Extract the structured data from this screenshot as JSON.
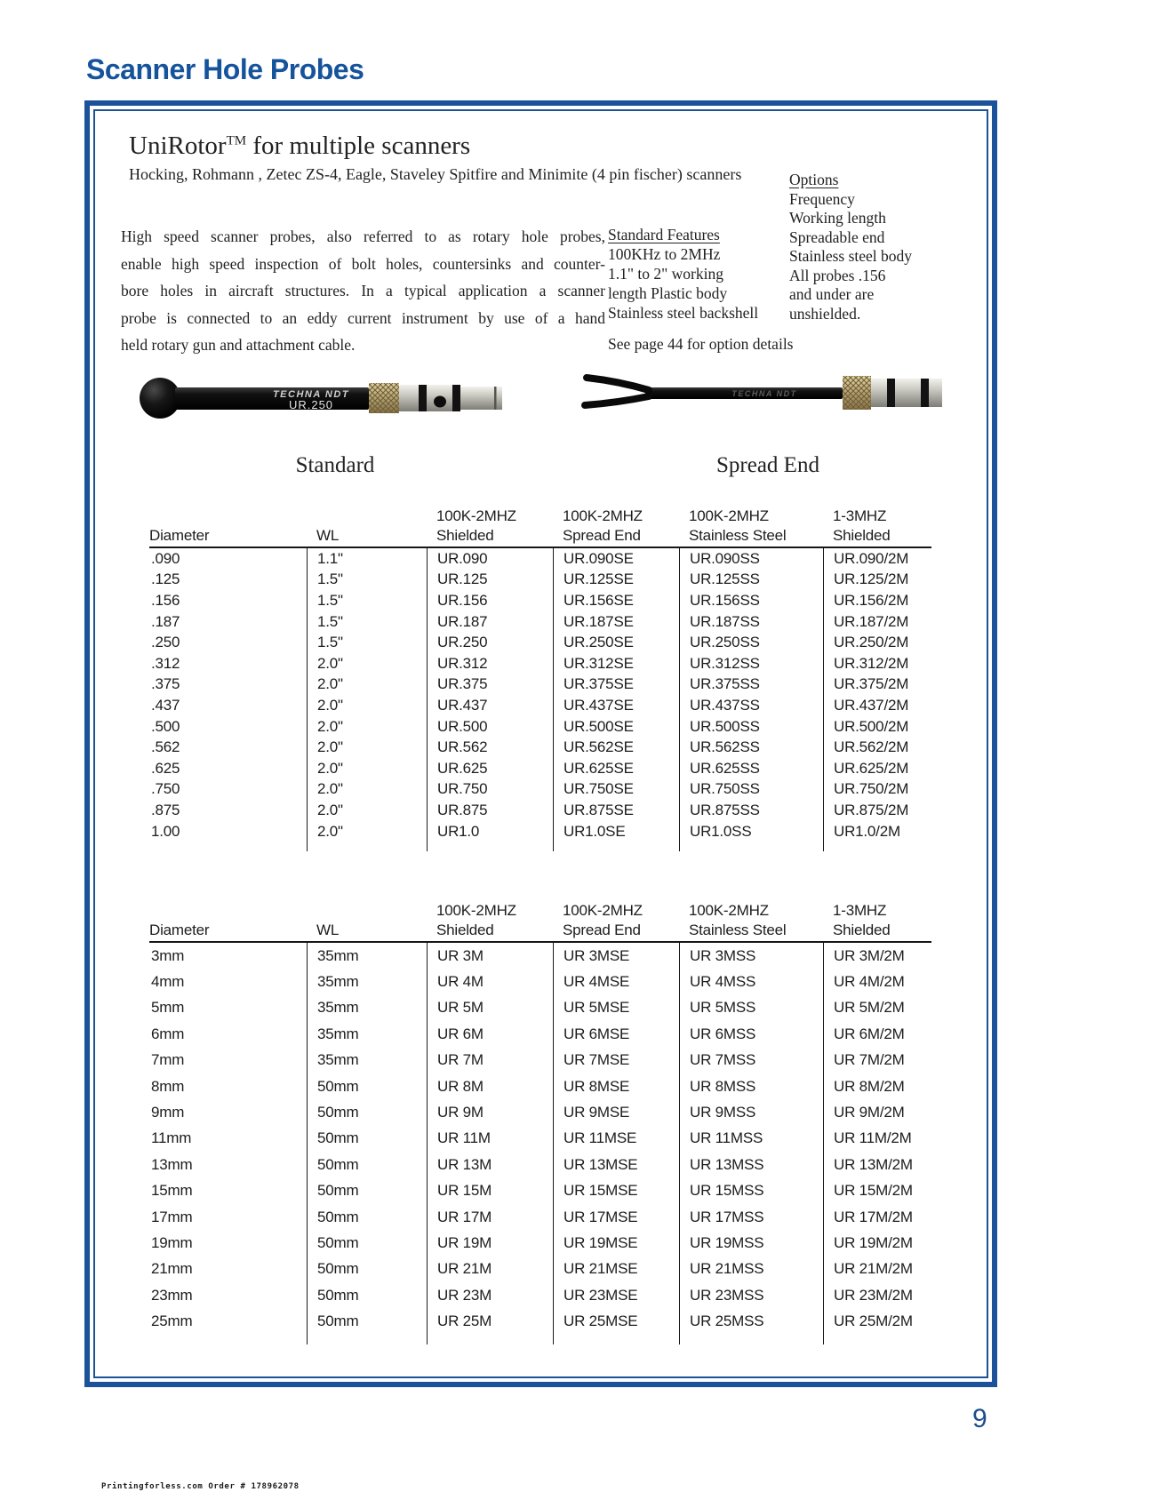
{
  "page": {
    "title": "Scanner Hole Probes",
    "page_number": "9",
    "print_footer": "Printingforless.com Order # 178962078"
  },
  "header": {
    "product_name": "UniRotor",
    "trademark": "TM",
    "product_tagline": " for multiple scanners",
    "compatibility": "Hocking, Rohmann , Zetec ZS-4, Eagle, Staveley Spitfire and Minimite (4 pin fischer) scanners"
  },
  "description": {
    "lines": [
      "High speed scanner probes, also referred to as rotary hole probes,",
      "enable high speed inspection of bolt holes, countersinks and counter-",
      "bore holes in aircraft structures. In a typical application a scanner",
      "probe is connected to an eddy current instrument by use of a hand",
      "held rotary gun and attachment cable."
    ]
  },
  "standard_features": {
    "heading": "Standard Features",
    "lines": [
      "100KHz to 2MHz",
      "1.1\" to 2\" working",
      "length Plastic body",
      "Stainless steel backshell"
    ]
  },
  "options": {
    "heading": "Options",
    "lines": [
      "Frequency",
      "Working length",
      "Spreadable end",
      "Stainless steel body",
      "All probes .156",
      "and under are",
      "unshielded."
    ]
  },
  "note": "See page 44 for option details",
  "probes": {
    "standard": {
      "label": "Standard",
      "brand": "TECHNA NDT",
      "model": "UR.250"
    },
    "spread_end": {
      "label": "Spread End",
      "brand": "TECHNA NDT"
    }
  },
  "colors": {
    "accent_blue": "#1b5299",
    "table_line": "#1a1a1a"
  },
  "tables": [
    {
      "headers_top": [
        "",
        "",
        "100K-2MHZ",
        "100K-2MHZ",
        "100K-2MHZ",
        "1-3MHZ"
      ],
      "headers_bottom": [
        "Diameter",
        "WL",
        "Shielded",
        "Spread End",
        "Stainless Steel",
        "Shielded"
      ],
      "rows": [
        [
          ".090",
          "1.1\"",
          "UR.090",
          "UR.090SE",
          "UR.090SS",
          "UR.090/2M"
        ],
        [
          ".125",
          "1.5\"",
          "UR.125",
          "UR.125SE",
          "UR.125SS",
          "UR.125/2M"
        ],
        [
          ".156",
          "1.5\"",
          "UR.156",
          "UR.156SE",
          "UR.156SS",
          "UR.156/2M"
        ],
        [
          ".187",
          "1.5\"",
          "UR.187",
          "UR.187SE",
          "UR.187SS",
          "UR.187/2M"
        ],
        [
          ".250",
          "1.5\"",
          "UR.250",
          "UR.250SE",
          "UR.250SS",
          "UR.250/2M"
        ],
        [
          ".312",
          "2.0\"",
          "UR.312",
          "UR.312SE",
          "UR.312SS",
          "UR.312/2M"
        ],
        [
          ".375",
          "2.0\"",
          "UR.375",
          "UR.375SE",
          "UR.375SS",
          "UR.375/2M"
        ],
        [
          ".437",
          "2.0\"",
          "UR.437",
          "UR.437SE",
          "UR.437SS",
          "UR.437/2M"
        ],
        [
          ".500",
          "2.0\"",
          "UR.500",
          "UR.500SE",
          "UR.500SS",
          "UR.500/2M"
        ],
        [
          ".562",
          "2.0\"",
          "UR.562",
          "UR.562SE",
          "UR.562SS",
          "UR.562/2M"
        ],
        [
          ".625",
          "2.0\"",
          "UR.625",
          "UR.625SE",
          "UR.625SS",
          "UR.625/2M"
        ],
        [
          ".750",
          "2.0\"",
          "UR.750",
          "UR.750SE",
          "UR.750SS",
          "UR.750/2M"
        ],
        [
          ".875",
          "2.0\"",
          "UR.875",
          "UR.875SE",
          "UR.875SS",
          "UR.875/2M"
        ],
        [
          "1.00",
          "2.0\"",
          "UR1.0",
          "UR1.0SE",
          "UR1.0SS",
          "UR1.0/2M"
        ]
      ]
    },
    {
      "headers_top": [
        "",
        "",
        "100K-2MHZ",
        "100K-2MHZ",
        "100K-2MHZ",
        "1-3MHZ"
      ],
      "headers_bottom": [
        "Diameter",
        "WL",
        "Shielded",
        "Spread End",
        "Stainless Steel",
        "Shielded"
      ],
      "rows": [
        [
          "3mm",
          "35mm",
          "UR 3M",
          "UR 3MSE",
          "UR 3MSS",
          "UR 3M/2M"
        ],
        [
          "4mm",
          "35mm",
          "UR 4M",
          "UR 4MSE",
          "UR 4MSS",
          "UR 4M/2M"
        ],
        [
          "5mm",
          "35mm",
          "UR 5M",
          "UR 5MSE",
          "UR 5MSS",
          "UR 5M/2M"
        ],
        [
          "6mm",
          "35mm",
          "UR 6M",
          "UR 6MSE",
          "UR 6MSS",
          "UR 6M/2M"
        ],
        [
          "7mm",
          "35mm",
          "UR 7M",
          "UR 7MSE",
          "UR 7MSS",
          "UR 7M/2M"
        ],
        [
          "8mm",
          "50mm",
          "UR 8M",
          "UR 8MSE",
          "UR 8MSS",
          "UR 8M/2M"
        ],
        [
          "9mm",
          "50mm",
          "UR 9M",
          "UR 9MSE",
          "UR 9MSS",
          "UR 9M/2M"
        ],
        [
          "11mm",
          "50mm",
          "UR 11M",
          "UR 11MSE",
          "UR 11MSS",
          "UR 11M/2M"
        ],
        [
          "13mm",
          "50mm",
          "UR 13M",
          "UR 13MSE",
          "UR 13MSS",
          "UR 13M/2M"
        ],
        [
          "15mm",
          "50mm",
          "UR 15M",
          "UR 15MSE",
          "UR 15MSS",
          "UR 15M/2M"
        ],
        [
          "17mm",
          "50mm",
          "UR 17M",
          "UR 17MSE",
          "UR 17MSS",
          "UR 17M/2M"
        ],
        [
          "19mm",
          "50mm",
          "UR 19M",
          "UR 19MSE",
          "UR 19MSS",
          "UR 19M/2M"
        ],
        [
          "21mm",
          "50mm",
          "UR 21M",
          "UR 21MSE",
          "UR 21MSS",
          "UR 21M/2M"
        ],
        [
          "23mm",
          "50mm",
          "UR 23M",
          "UR 23MSE",
          "UR 23MSS",
          "UR 23M/2M"
        ],
        [
          "25mm",
          "50mm",
          "UR 25M",
          "UR 25MSE",
          "UR 25MSS",
          "UR 25M/2M"
        ]
      ]
    }
  ]
}
